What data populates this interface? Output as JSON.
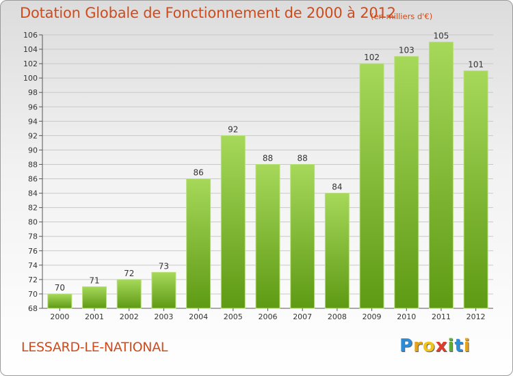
{
  "title": "Dotation Globale de Fonctionnement de 2000 à 2012",
  "subtitle": "(en milliers d'€)",
  "commune": "LESSARD-LE-NATIONAL",
  "logo": {
    "letters": [
      "P",
      "r",
      "o",
      "x",
      "i",
      "t",
      "i"
    ],
    "colors": [
      "#2b8cd8",
      "#e6a31a",
      "#f0c419",
      "#e23b2a",
      "#5db02e",
      "#2b8cd8",
      "#e6a31a"
    ]
  },
  "colors": {
    "bar_light": "#a6d85a",
    "bar_dark": "#5e9a14",
    "text_accent": "#d04a1a"
  },
  "chart_data": {
    "type": "bar",
    "categories": [
      "2000",
      "2001",
      "2002",
      "2003",
      "2004",
      "2005",
      "2006",
      "2007",
      "2008",
      "2009",
      "2010",
      "2011",
      "2012"
    ],
    "values": [
      70,
      71,
      72,
      73,
      86,
      92,
      88,
      88,
      84,
      102,
      103,
      105,
      101
    ],
    "ylim": [
      68,
      106
    ],
    "yticks": [
      68,
      70,
      72,
      74,
      76,
      78,
      80,
      82,
      84,
      86,
      88,
      90,
      92,
      94,
      96,
      98,
      100,
      102,
      104,
      106
    ],
    "grid": true,
    "data_labels": true
  }
}
